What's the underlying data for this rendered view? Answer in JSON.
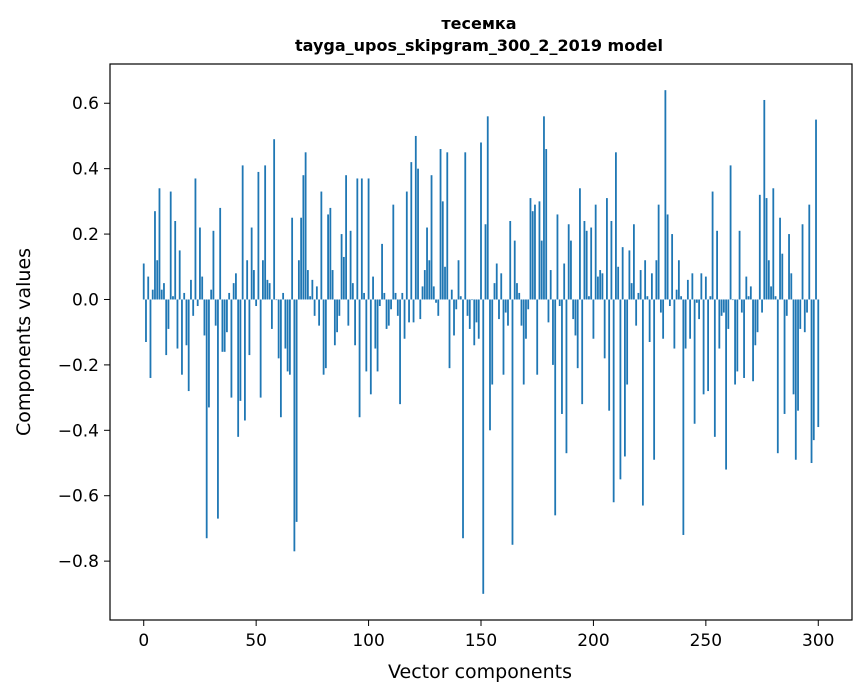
{
  "chart_data": {
    "type": "bar",
    "title": "тесемка",
    "subtitle": "tayga_upos_skipgram_300_2_2019 model",
    "xlabel": "Vector components",
    "ylabel": "Components values",
    "xlim": [
      -15,
      315
    ],
    "ylim": [
      -0.98,
      0.72
    ],
    "xticks": [
      0,
      50,
      100,
      150,
      200,
      250,
      300
    ],
    "xtick_labels": [
      "0",
      "50",
      "100",
      "150",
      "200",
      "250",
      "300"
    ],
    "yticks": [
      -0.8,
      -0.6,
      -0.4,
      -0.2,
      0.0,
      0.2,
      0.4,
      0.6
    ],
    "ytick_labels": [
      "−0.8",
      "−0.6",
      "−0.4",
      "−0.2",
      "0.0",
      "0.2",
      "0.4",
      "0.6"
    ],
    "grid": false,
    "bar_color": "#1f77b4",
    "x_start": 0,
    "values": [
      0.11,
      -0.13,
      0.07,
      -0.24,
      0.03,
      0.27,
      0.12,
      0.34,
      0.03,
      0.05,
      -0.17,
      -0.09,
      0.33,
      0.01,
      0.24,
      -0.15,
      0.15,
      -0.23,
      0.02,
      -0.14,
      -0.28,
      0.06,
      -0.05,
      0.37,
      -0.02,
      0.22,
      0.07,
      -0.11,
      -0.73,
      -0.33,
      0.03,
      0.21,
      -0.08,
      -0.67,
      0.28,
      -0.16,
      -0.16,
      -0.1,
      0.02,
      -0.3,
      0.05,
      0.08,
      -0.42,
      -0.31,
      0.41,
      -0.37,
      0.12,
      -0.17,
      0.22,
      0.09,
      -0.02,
      0.39,
      -0.3,
      0.12,
      0.41,
      0.06,
      0.05,
      -0.09,
      0.49,
      0.0,
      -0.18,
      -0.36,
      0.02,
      -0.15,
      -0.22,
      -0.23,
      0.25,
      -0.77,
      -0.68,
      0.12,
      0.25,
      0.38,
      0.45,
      0.09,
      0.01,
      0.06,
      -0.05,
      0.04,
      -0.08,
      0.33,
      -0.23,
      -0.21,
      0.26,
      0.28,
      0.09,
      -0.14,
      -0.1,
      -0.05,
      0.2,
      0.13,
      0.38,
      -0.08,
      0.21,
      0.05,
      -0.14,
      0.37,
      -0.36,
      0.37,
      0.02,
      -0.22,
      0.37,
      -0.29,
      0.07,
      -0.15,
      -0.22,
      -0.02,
      0.17,
      0.02,
      -0.09,
      -0.08,
      -0.03,
      0.29,
      0.02,
      -0.05,
      -0.32,
      0.02,
      -0.12,
      0.33,
      -0.07,
      0.42,
      -0.07,
      0.5,
      0.4,
      -0.06,
      0.04,
      0.09,
      0.22,
      0.12,
      0.38,
      0.04,
      -0.01,
      -0.05,
      0.46,
      0.3,
      0.1,
      0.45,
      -0.21,
      0.03,
      -0.11,
      -0.03,
      0.12,
      0.01,
      -0.73,
      0.45,
      -0.05,
      -0.09,
      0.0,
      -0.14,
      -0.07,
      -0.12,
      0.48,
      -0.9,
      0.23,
      0.56,
      -0.4,
      -0.26,
      0.05,
      0.11,
      -0.06,
      0.08,
      -0.23,
      -0.04,
      -0.08,
      0.24,
      -0.75,
      0.18,
      0.05,
      0.02,
      -0.08,
      -0.26,
      -0.12,
      -0.03,
      0.31,
      0.27,
      0.29,
      -0.23,
      0.3,
      0.18,
      0.56,
      0.46,
      -0.07,
      0.09,
      -0.2,
      -0.66,
      0.26,
      -0.02,
      -0.35,
      0.11,
      -0.47,
      0.23,
      0.18,
      -0.06,
      -0.11,
      -0.21,
      0.34,
      -0.32,
      0.24,
      0.21,
      0.01,
      0.22,
      -0.12,
      0.29,
      0.07,
      0.09,
      0.08,
      -0.18,
      0.31,
      -0.34,
      0.24,
      -0.62,
      0.45,
      0.1,
      -0.55,
      0.16,
      -0.48,
      -0.26,
      0.15,
      0.05,
      0.23,
      -0.08,
      0.02,
      0.09,
      -0.63,
      0.12,
      0.01,
      -0.13,
      0.08,
      -0.49,
      0.12,
      0.29,
      -0.04,
      -0.12,
      0.64,
      0.26,
      -0.02,
      0.2,
      -0.15,
      0.03,
      0.12,
      0.01,
      -0.72,
      -0.15,
      0.06,
      -0.12,
      0.08,
      -0.38,
      -0.01,
      -0.06,
      0.08,
      -0.29,
      0.07,
      -0.28,
      0.01,
      0.33,
      -0.42,
      0.21,
      -0.15,
      -0.05,
      -0.04,
      -0.52,
      -0.09,
      0.41,
      0.0,
      -0.26,
      -0.22,
      0.21,
      -0.04,
      -0.24,
      0.07,
      0.01,
      0.04,
      -0.25,
      -0.14,
      -0.1,
      0.32,
      -0.04,
      0.61,
      0.31,
      0.12,
      0.04,
      0.34,
      0.01,
      -0.47,
      0.25,
      0.14,
      -0.35,
      -0.05,
      0.2,
      0.08,
      -0.29,
      -0.49,
      -0.34,
      -0.09,
      0.23,
      -0.1,
      -0.04,
      0.29,
      -0.5,
      -0.43,
      0.55,
      -0.39
    ]
  }
}
